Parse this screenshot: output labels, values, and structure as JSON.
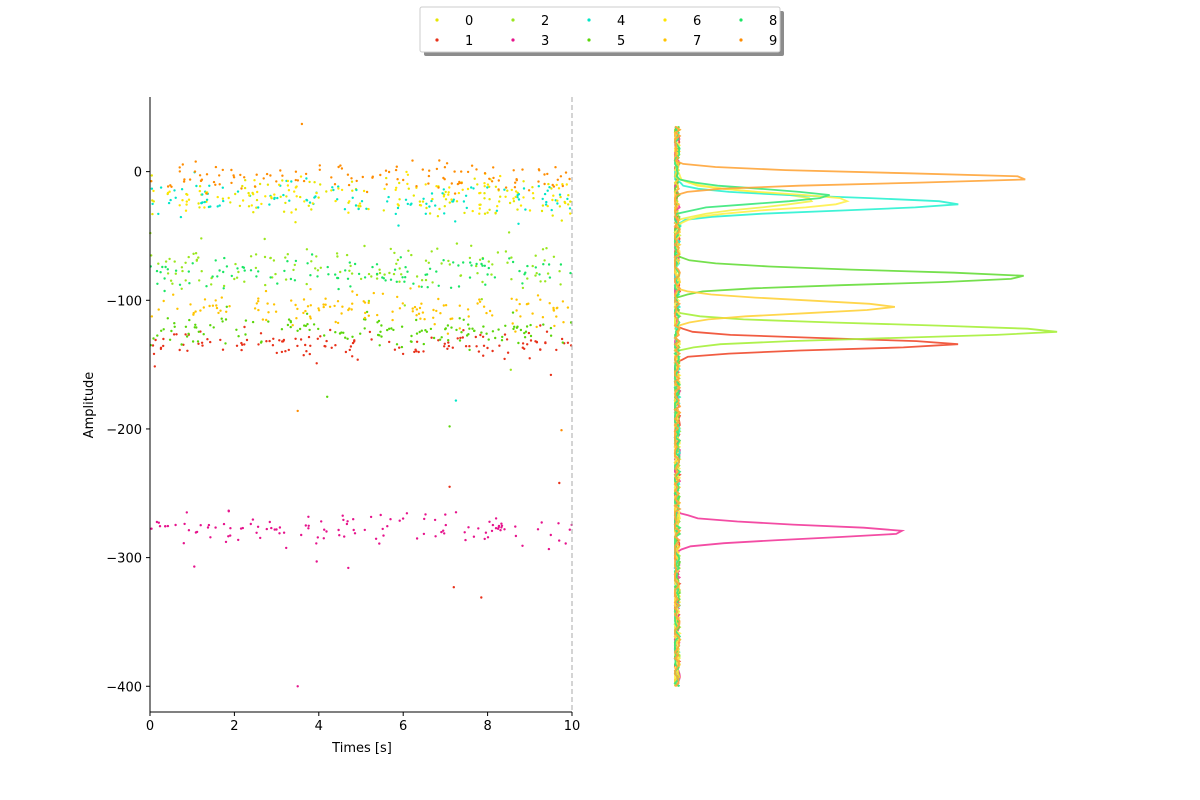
{
  "chart_data": [
    {
      "type": "scatter",
      "xlabel": "Times [s]",
      "ylabel": "Amplitude",
      "xlim": [
        0,
        10
      ],
      "ylim": [
        -420,
        58
      ],
      "x_ticks": [
        "0",
        "2",
        "4",
        "6",
        "8",
        "10"
      ],
      "y_ticks": [
        "0",
        "−100",
        "−200",
        "−300",
        "−400"
      ],
      "x_tick_values": [
        0,
        2,
        4,
        6,
        8,
        10
      ],
      "y_tick_values": [
        0,
        -100,
        -200,
        -300,
        -400
      ],
      "vertical_reference_line_x": 10,
      "grid": false,
      "legend": {
        "placement": "top-center",
        "columns": 5,
        "entries": [
          "0",
          "1",
          "2",
          "3",
          "4",
          "5",
          "6",
          "7",
          "8",
          "9"
        ]
      },
      "series": [
        {
          "name": "0",
          "color": "#e6e600",
          "center": -20,
          "spread": 8,
          "count": 110
        },
        {
          "name": "1",
          "color": "#e8311a",
          "center": -134,
          "spread": 5,
          "count": 130
        },
        {
          "name": "2",
          "color": "#9ae61e",
          "center": -75,
          "spread": 10,
          "count": 130
        },
        {
          "name": "3",
          "color": "#e6138c",
          "center": -278,
          "spread": 6,
          "count": 120
        },
        {
          "name": "4",
          "color": "#00e6c8",
          "center": -22,
          "spread": 7,
          "count": 110
        },
        {
          "name": "5",
          "color": "#5ad60a",
          "center": -124,
          "spread": 6,
          "count": 140
        },
        {
          "name": "6",
          "color": "#ffe600",
          "center": -18,
          "spread": 7,
          "count": 100
        },
        {
          "name": "7",
          "color": "#ffc400",
          "center": -106,
          "spread": 7,
          "count": 140
        },
        {
          "name": "8",
          "color": "#1ae664",
          "center": -80,
          "spread": 7,
          "count": 110
        },
        {
          "name": "9",
          "color": "#ff8c00",
          "center": -5,
          "spread": 6,
          "count": 120
        }
      ],
      "outliers": [
        {
          "series": "9",
          "x": 3.6,
          "y": 37
        },
        {
          "series": "3",
          "x": 3.5,
          "y": -400
        },
        {
          "series": "9",
          "x": 3.5,
          "y": -186
        },
        {
          "series": "1",
          "x": 3.95,
          "y": -149
        },
        {
          "series": "5",
          "x": 4.2,
          "y": -175
        },
        {
          "series": "3",
          "x": 3.95,
          "y": -303
        },
        {
          "series": "3",
          "x": 4.7,
          "y": -308
        },
        {
          "series": "3",
          "x": 1.05,
          "y": -307
        },
        {
          "series": "4",
          "x": 7.25,
          "y": -178
        },
        {
          "series": "5",
          "x": 7.1,
          "y": -198
        },
        {
          "series": "1",
          "x": 7.1,
          "y": -245
        },
        {
          "series": "1",
          "x": 7.2,
          "y": -323
        },
        {
          "series": "1",
          "x": 7.85,
          "y": -331
        },
        {
          "series": "9",
          "x": 9.75,
          "y": -201
        },
        {
          "series": "1",
          "x": 9.7,
          "y": -242
        },
        {
          "series": "1",
          "x": 9.5,
          "y": -158
        },
        {
          "series": "2",
          "x": 8.55,
          "y": -154
        },
        {
          "series": "3",
          "x": 9.85,
          "y": -289
        }
      ]
    },
    {
      "type": "line",
      "orientation": "horizontal-density",
      "ylim": [
        -420,
        58
      ],
      "series": [
        {
          "name": "0",
          "color": "#f2f24a",
          "center": -22,
          "spread": 6,
          "peak": 0.35
        },
        {
          "name": "1",
          "color": "#f04a2e",
          "center": -134,
          "spread": 4,
          "peak": 0.72
        },
        {
          "name": "2",
          "color": "#a6ef3a",
          "center": -124,
          "spread": 5,
          "peak": 0.98
        },
        {
          "name": "3",
          "color": "#f2399a",
          "center": -280,
          "spread": 5,
          "peak": 0.59
        },
        {
          "name": "4",
          "color": "#2af2d2",
          "center": -25,
          "spread": 5,
          "peak": 0.73
        },
        {
          "name": "5",
          "color": "#66dd3a",
          "center": -82,
          "spread": 5,
          "peak": 0.91
        },
        {
          "name": "6",
          "color": "#fff04a",
          "center": -23,
          "spread": 6,
          "peak": 0.45
        },
        {
          "name": "7",
          "color": "#ffd23a",
          "center": -105,
          "spread": 5,
          "peak": 0.56
        },
        {
          "name": "8",
          "color": "#3ae87a",
          "center": -19,
          "spread": 5,
          "peak": 0.4
        },
        {
          "name": "9",
          "color": "#ffa53a",
          "center": -5,
          "spread": 4,
          "peak": 0.93
        }
      ]
    }
  ]
}
